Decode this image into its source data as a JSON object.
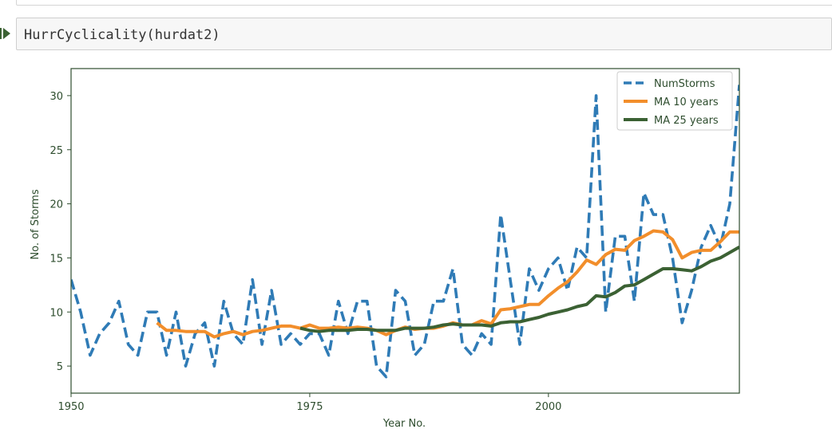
{
  "notebook": {
    "cell_code": "HurrCyclicality(hurdat2)"
  },
  "colors": {
    "numstorms": "#2f7bb6",
    "ma10": "#f28e2b",
    "ma25": "#3b6133",
    "axes": "#2e4d2e",
    "text": "#2e4d2e"
  },
  "chart_data": {
    "type": "line",
    "title": "",
    "xlabel": "Year No.",
    "ylabel": "No. of Storms",
    "xlim": [
      1950,
      2020
    ],
    "ylim": [
      2.5,
      32.5
    ],
    "xticks": [
      1950,
      1975,
      2000
    ],
    "xtick_labels": [
      "1950",
      "1975",
      "2000"
    ],
    "yticks": [
      5,
      10,
      15,
      20,
      25,
      30
    ],
    "ytick_labels": [
      "5",
      "10",
      "15",
      "20",
      "25",
      "30"
    ],
    "grid": false,
    "legend_position": "top-right",
    "series": [
      {
        "name": "NumStorms",
        "style": "dashed",
        "x": [
          1950,
          1951,
          1952,
          1953,
          1954,
          1955,
          1956,
          1957,
          1958,
          1959,
          1960,
          1961,
          1962,
          1963,
          1964,
          1965,
          1966,
          1967,
          1968,
          1969,
          1970,
          1971,
          1972,
          1973,
          1974,
          1975,
          1976,
          1977,
          1978,
          1979,
          1980,
          1981,
          1982,
          1983,
          1984,
          1985,
          1986,
          1987,
          1988,
          1989,
          1990,
          1991,
          1992,
          1993,
          1994,
          1995,
          1996,
          1997,
          1998,
          1999,
          2000,
          2001,
          2002,
          2003,
          2004,
          2005,
          2006,
          2007,
          2008,
          2009,
          2010,
          2011,
          2012,
          2013,
          2014,
          2015,
          2016,
          2017,
          2018,
          2019,
          2020
        ],
        "values": [
          13,
          10,
          6,
          8,
          9,
          11,
          7,
          6,
          10,
          10,
          6,
          10,
          5,
          8,
          9,
          5,
          11,
          8,
          7,
          13,
          7,
          12,
          7,
          8,
          7,
          8,
          8,
          6,
          11,
          8,
          11,
          11,
          5,
          4,
          12,
          11,
          6,
          7,
          11,
          11,
          14,
          7,
          6,
          8,
          7,
          19,
          13,
          7,
          14,
          12,
          14,
          15,
          12,
          16,
          15,
          30,
          10,
          17,
          17,
          11,
          21,
          19,
          19,
          15,
          9,
          12,
          16,
          18,
          16,
          20,
          31
        ]
      },
      {
        "name": "MA 10 years",
        "style": "solid",
        "x": [
          1959,
          1960,
          1961,
          1962,
          1963,
          1964,
          1965,
          1966,
          1967,
          1968,
          1969,
          1970,
          1971,
          1972,
          1973,
          1974,
          1975,
          1976,
          1977,
          1978,
          1979,
          1980,
          1981,
          1982,
          1983,
          1984,
          1985,
          1986,
          1987,
          1988,
          1989,
          1990,
          1991,
          1992,
          1993,
          1994,
          1995,
          1996,
          1997,
          1998,
          1999,
          2000,
          2001,
          2002,
          2003,
          2004,
          2005,
          2006,
          2007,
          2008,
          2009,
          2010,
          2011,
          2012,
          2013,
          2014,
          2015,
          2016,
          2017,
          2018,
          2019,
          2020
        ],
        "values": [
          9.0,
          8.3,
          8.3,
          8.2,
          8.2,
          8.2,
          7.7,
          8.0,
          8.2,
          7.9,
          8.2,
          8.3,
          8.5,
          8.7,
          8.7,
          8.5,
          8.8,
          8.5,
          8.5,
          8.6,
          8.5,
          8.6,
          8.5,
          8.3,
          7.9,
          8.3,
          8.6,
          8.4,
          8.5,
          8.5,
          8.7,
          9.0,
          8.8,
          8.8,
          9.2,
          8.9,
          10.2,
          10.3,
          10.5,
          10.7,
          10.7,
          11.5,
          12.2,
          12.8,
          13.7,
          14.8,
          14.4,
          15.3,
          15.8,
          15.7,
          16.6,
          17.0,
          17.5,
          17.4,
          16.7,
          15.0,
          15.5,
          15.7,
          15.7,
          16.5,
          17.4,
          17.4
        ]
      },
      {
        "name": "MA 25 years",
        "style": "solid",
        "x": [
          1974,
          1975,
          1976,
          1977,
          1978,
          1979,
          1980,
          1981,
          1982,
          1983,
          1984,
          1985,
          1986,
          1987,
          1988,
          1989,
          1990,
          1991,
          1992,
          1993,
          1994,
          1995,
          1996,
          1997,
          1998,
          1999,
          2000,
          2001,
          2002,
          2003,
          2004,
          2005,
          2006,
          2007,
          2008,
          2009,
          2010,
          2011,
          2012,
          2013,
          2014,
          2015,
          2016,
          2017,
          2018,
          2019,
          2020
        ],
        "values": [
          8.5,
          8.3,
          8.2,
          8.3,
          8.3,
          8.3,
          8.4,
          8.4,
          8.3,
          8.3,
          8.3,
          8.5,
          8.5,
          8.5,
          8.6,
          8.8,
          8.9,
          8.8,
          8.8,
          8.8,
          8.7,
          9.0,
          9.1,
          9.1,
          9.3,
          9.5,
          9.8,
          10.0,
          10.2,
          10.5,
          10.7,
          11.5,
          11.4,
          11.8,
          12.4,
          12.5,
          13.0,
          13.5,
          14.0,
          14.0,
          13.9,
          13.8,
          14.2,
          14.7,
          15.0,
          15.5,
          16.0
        ]
      }
    ]
  }
}
